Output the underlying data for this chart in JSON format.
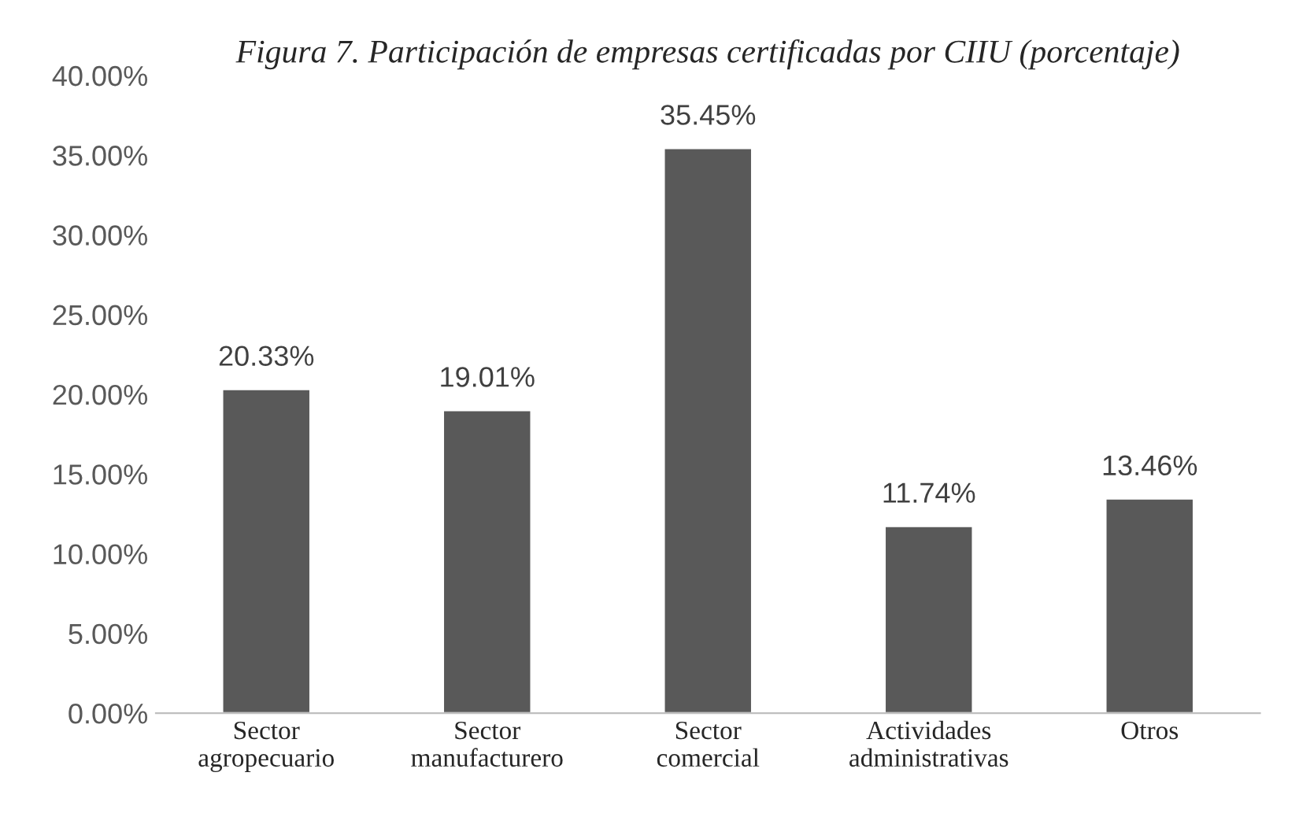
{
  "chart_data": {
    "type": "bar",
    "title": "Figura 7. Participación de empresas certificadas por CIIU (porcentaje)",
    "categories": [
      "Sector\nagropecuario",
      "Sector\nmanufacturero",
      "Sector\ncomercial",
      "Actividades\nadministrativas",
      "Otros"
    ],
    "values": [
      20.33,
      19.01,
      35.45,
      11.74,
      13.46
    ],
    "value_labels": [
      "20.33%",
      "19.01%",
      "35.45%",
      "11.74%",
      "13.46%"
    ],
    "color": "#595959",
    "ylim": [
      0,
      40
    ],
    "yticks": [
      {
        "value": 0,
        "label": "0.00%"
      },
      {
        "value": 5,
        "label": "5.00%"
      },
      {
        "value": 10,
        "label": "10.00%"
      },
      {
        "value": 15,
        "label": "15.00%"
      },
      {
        "value": 20,
        "label": "20.00%"
      },
      {
        "value": 25,
        "label": "25.00%"
      },
      {
        "value": 30,
        "label": "30.00%"
      },
      {
        "value": 35,
        "label": "35.00%"
      },
      {
        "value": 40,
        "label": "40.00%"
      }
    ],
    "grid": false,
    "legend": false
  }
}
